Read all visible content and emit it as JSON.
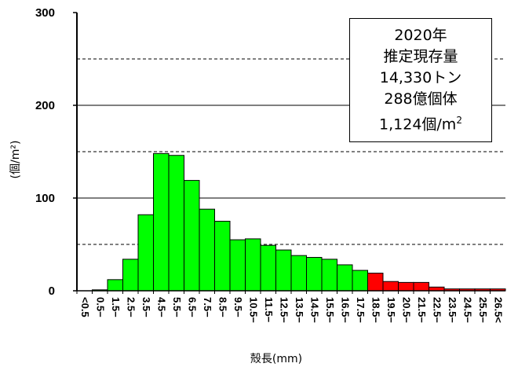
{
  "chart_data": {
    "type": "bar",
    "categories": [
      "<0.5",
      "0.5−",
      "1.5−",
      "2.5−",
      "3.5−",
      "4.5−",
      "5.5−",
      "6.5−",
      "7.5−",
      "8.5−",
      "9.5−",
      "10.5−",
      "11.5−",
      "12.5−",
      "13.5−",
      "14.5−",
      "15.5−",
      "16.5−",
      "17.5−",
      "18.5−",
      "19.5−",
      "20.5−",
      "21.5−",
      "22.5−",
      "23.5−",
      "24.5−",
      "25.5−",
      "26.5<"
    ],
    "values": [
      0,
      1,
      12,
      34,
      82,
      148,
      146,
      119,
      88,
      75,
      55,
      56,
      49,
      44,
      38,
      36,
      34,
      28,
      22,
      19,
      10,
      9,
      9,
      4,
      2,
      2,
      2,
      2
    ],
    "highlight_from_category": "18.5−",
    "colors": {
      "normal": "#00ff00",
      "highlight": "#ff0000",
      "edge": "#000000"
    },
    "ylim": [
      0,
      300
    ],
    "yticks": [
      0,
      100,
      200,
      300
    ],
    "grid": {
      "dashed_at": [
        50,
        150,
        250
      ],
      "solid_at": [
        100,
        200
      ]
    },
    "xlabel": "殻長(mm)",
    "ylabel": "(個/m²)",
    "annotation": {
      "line1": "2020年",
      "line2": "推定現存量",
      "line3": "14,330トン",
      "line4": "288億個体",
      "line5": "1,124個/m",
      "line5_sup": "2"
    }
  }
}
